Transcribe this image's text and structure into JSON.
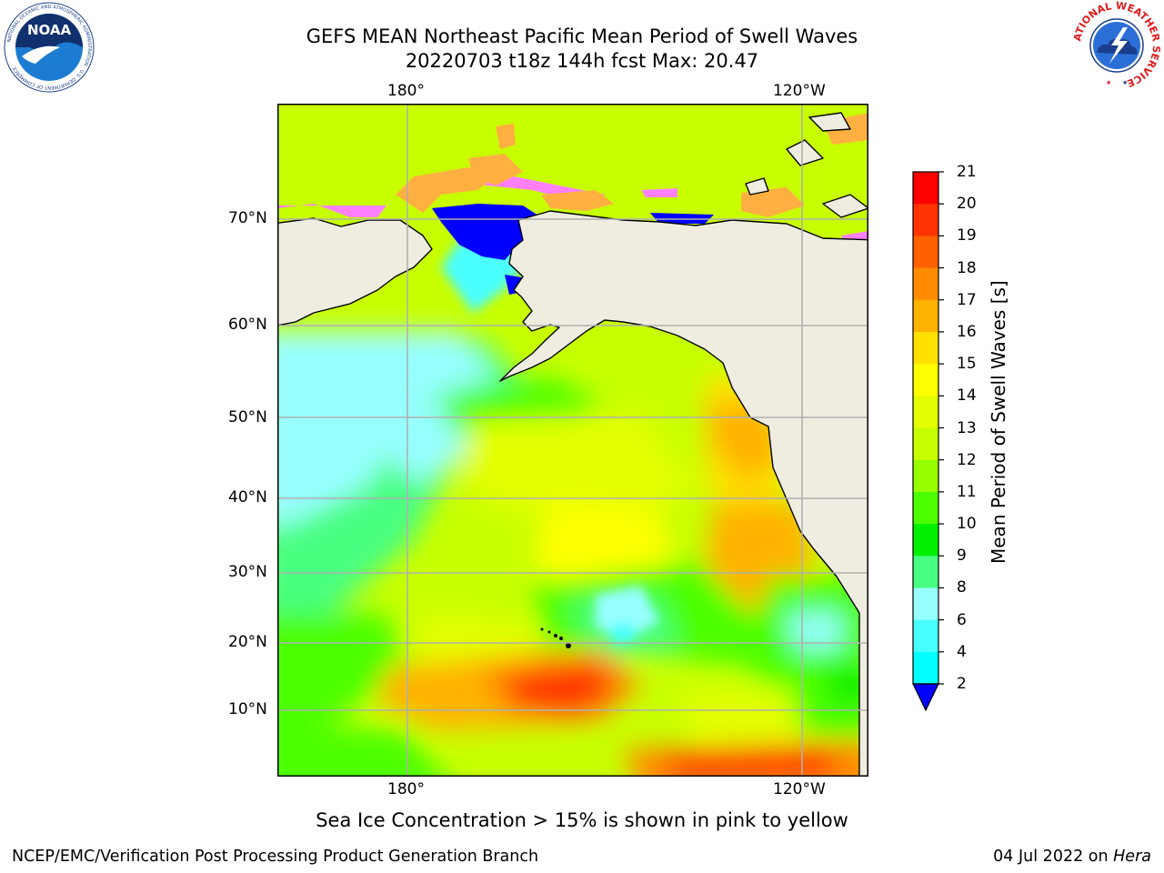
{
  "header": {
    "title_line1": "GEFS MEAN Northeast Pacific Mean Period of Swell Waves",
    "title_line2": "20220703 t18z 144h fcst   Max: 20.47"
  },
  "logos": {
    "left_icon": "noaa-logo-icon",
    "left_text": "NOAA",
    "left_ring_text": "NATIONAL OCEANIC AND ATMOSPHERIC ADMINISTRATION · U.S. DEPARTMENT OF COMMERCE",
    "right_icon": "nws-logo-icon",
    "right_ring_text": "NATIONAL WEATHER SERVICE"
  },
  "map": {
    "lon_top_labels": [
      "180°",
      "120°W"
    ],
    "lon_bottom_labels": [
      "180°",
      "120°W"
    ],
    "lat_labels": [
      "70°N",
      "60°N",
      "50°N",
      "40°N",
      "30°N",
      "20°N",
      "10°N"
    ],
    "colors": {
      "land": "#efede0",
      "grid": "#b0b0b0",
      "coast": "#000000",
      "ice_pink": "#ff80ff",
      "ice_orange": "#ffb040"
    }
  },
  "colorbar": {
    "label": "Mean Period of Swell Waves [s]",
    "ticks": [
      "21",
      "20",
      "19",
      "18",
      "17",
      "16",
      "15",
      "14",
      "13",
      "12",
      "11",
      "10",
      "9",
      "8",
      "6",
      "4",
      "2"
    ],
    "colors": [
      "#ff0000",
      "#ff3300",
      "#ff6000",
      "#ff8c00",
      "#ffb300",
      "#ffe100",
      "#ffff00",
      "#e3ff00",
      "#c8ff00",
      "#98ff00",
      "#4cff00",
      "#00f000",
      "#48ff80",
      "#98ffff",
      "#48ffff",
      "#00ffff",
      "#00c8ff",
      "#0064ff"
    ],
    "extend_color": "#0000ff"
  },
  "notes": {
    "sea_ice": "Sea Ice Concentration > 15% is shown in pink to yellow"
  },
  "footer": {
    "left": "NCEP/EMC/Verification Post Processing Product Generation Branch",
    "right_date": "04 Jul 2022 on ",
    "right_host": "Hera"
  }
}
